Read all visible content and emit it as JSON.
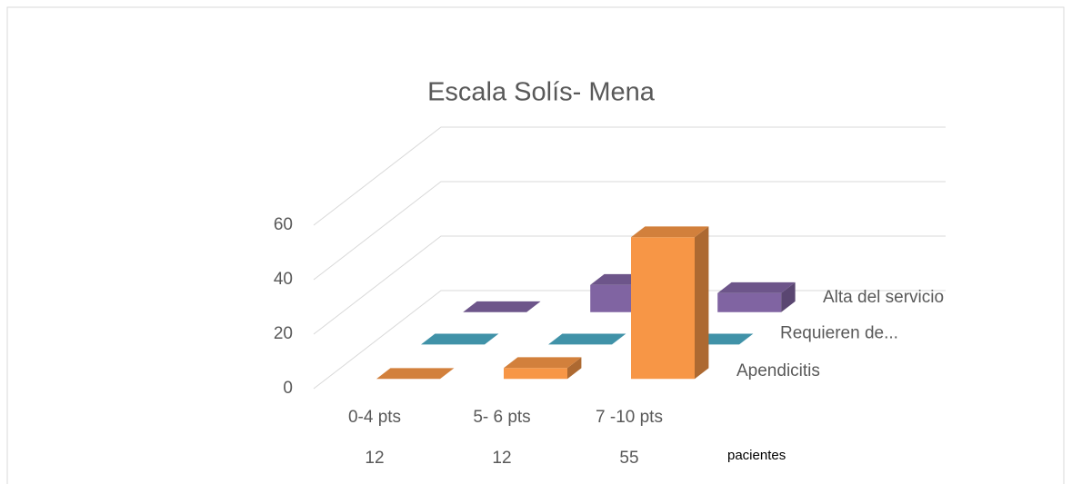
{
  "chart_data": {
    "type": "bar3d",
    "title": "Escala  Solís- Mena",
    "categories": [
      "0-4  pts",
      "5- 6  pts",
      "7 -10  pts"
    ],
    "series": [
      {
        "name": "Apendicitis",
        "color": "#f79646",
        "values": [
          0,
          4,
          52
        ]
      },
      {
        "name": "Requieren de...",
        "color": "#4bacc6",
        "values": [
          0,
          0,
          0
        ]
      },
      {
        "name": "Alta del servicio",
        "color": "#8064a2",
        "values": [
          0,
          10,
          7
        ]
      }
    ],
    "table": {
      "label": "pacientes",
      "values": [
        12,
        12,
        55
      ]
    },
    "ylim": [
      0,
      60
    ],
    "yticks": [
      0,
      20,
      40,
      60
    ],
    "grid": true
  }
}
